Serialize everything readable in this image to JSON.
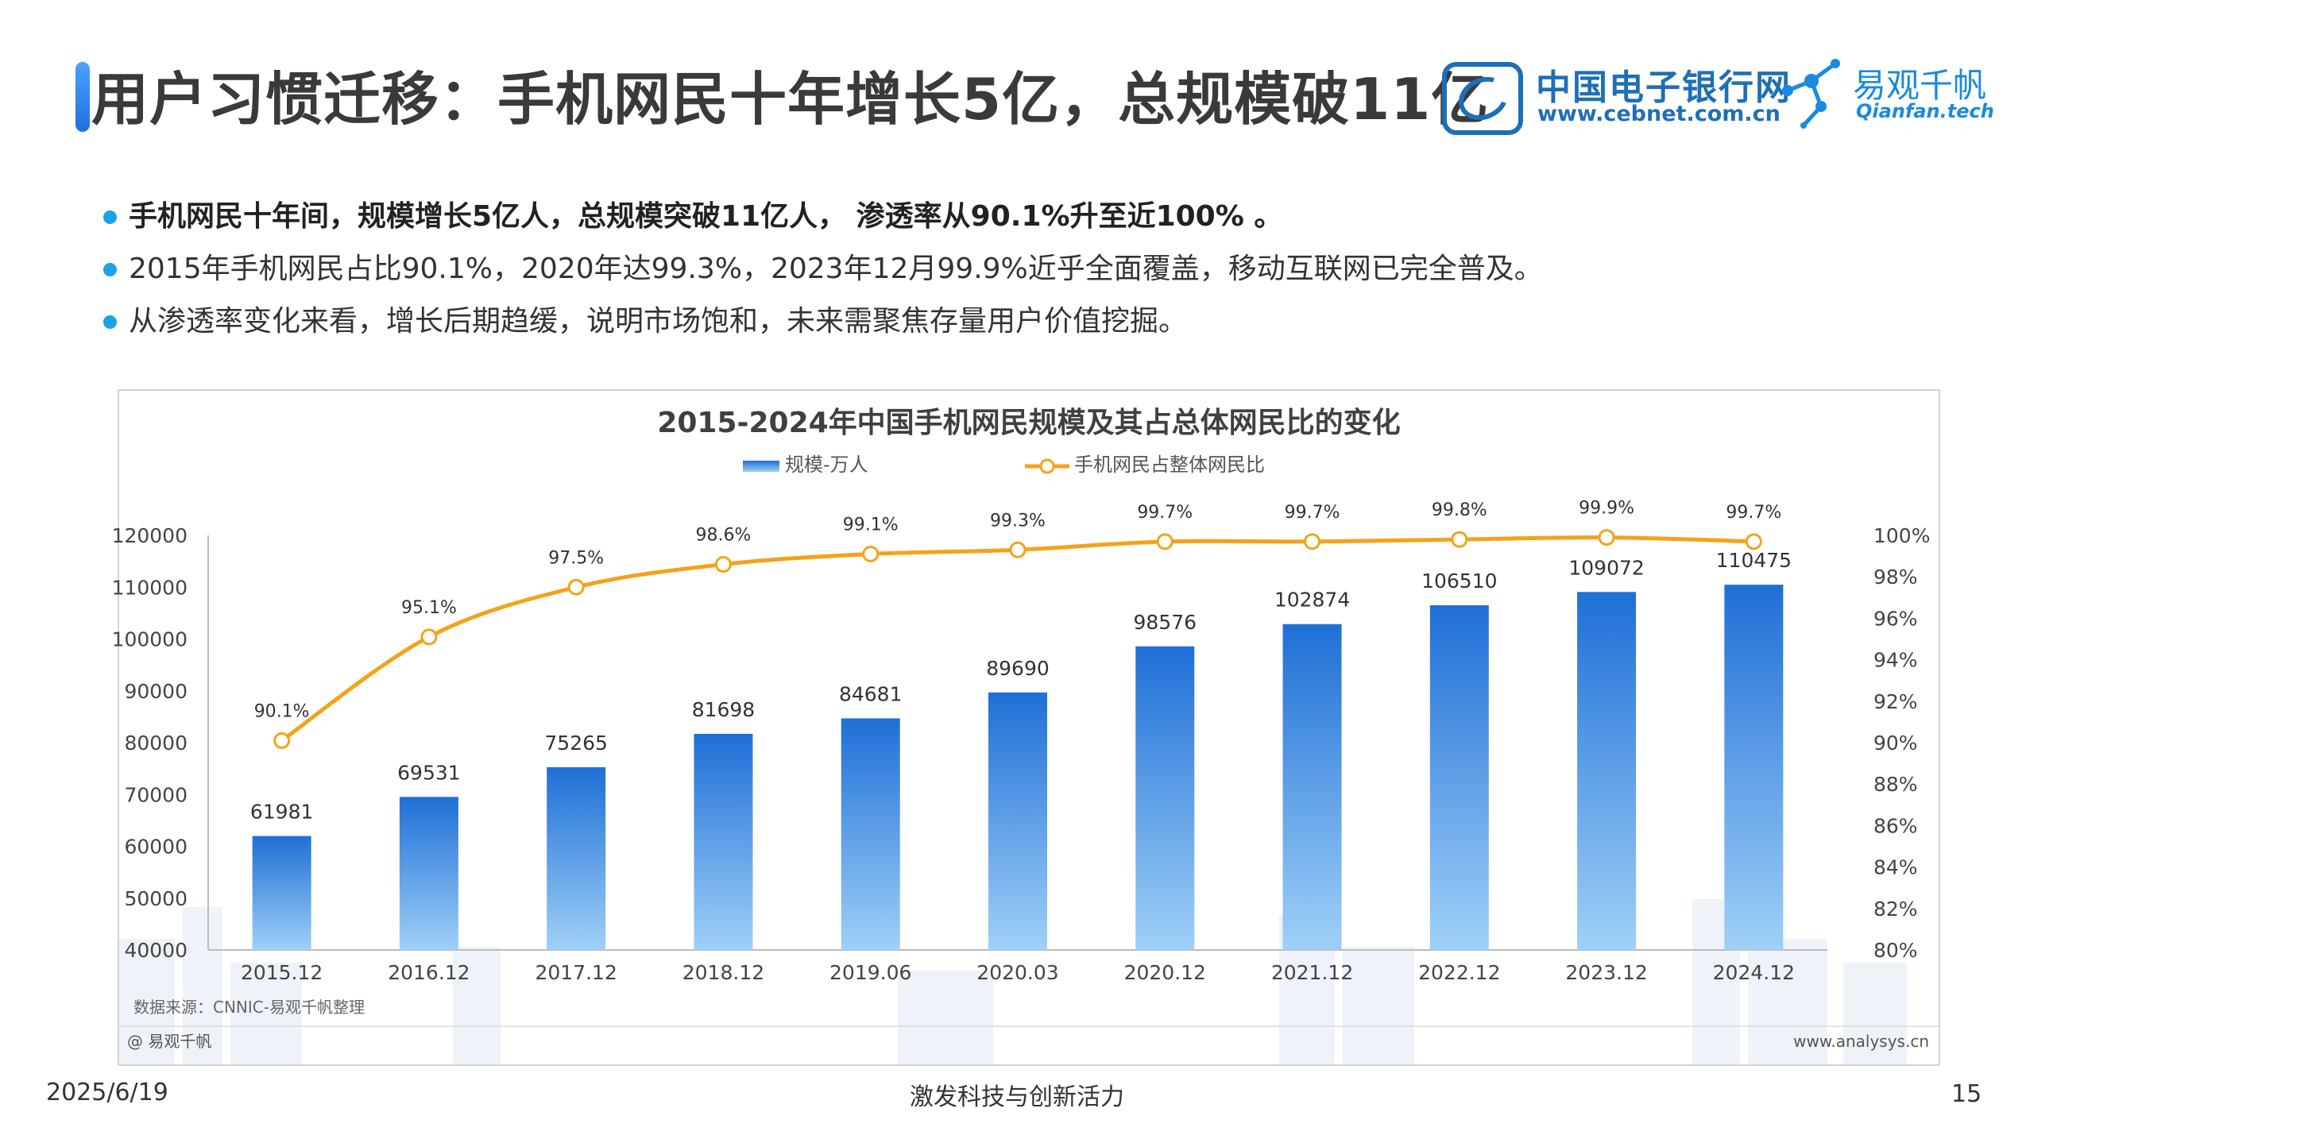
{
  "header": {
    "title": "用户习惯迁移：手机网民十年增长5亿，总规模破11亿",
    "logo1_name": "中国电子银行网",
    "logo1_url": "www.cebnet.com.cn",
    "logo2_name": "易观千帆",
    "logo2_url": "Qianfan.tech"
  },
  "bullets": [
    "手机网民十年间，规模增长5亿人，总规模突破11亿人， 渗透率从90.1%升至近100% 。",
    "2015年手机网民占比90.1%，2020年达99.3%，2023年12月99.9%近乎全面覆盖，移动互联网已完全普及。",
    "从渗透率变化来看，增长后期趋缓，说明市场饱和，未来需聚焦存量用户价值挖掘。"
  ],
  "chart_data": {
    "type": "bar",
    "title": "2015-2024年中国手机网民规模及其占总体网民比的变化",
    "categories": [
      "2015.12",
      "2016.12",
      "2017.12",
      "2018.12",
      "2019.06",
      "2020.03",
      "2020.12",
      "2021.12",
      "2022.12",
      "2023.12",
      "2024.12"
    ],
    "series": [
      {
        "name": "规模-万人",
        "type": "bar",
        "axis": "left",
        "values": [
          61981,
          69531,
          75265,
          81698,
          84681,
          89690,
          98576,
          102874,
          106510,
          109072,
          110475
        ],
        "labels": [
          "61981",
          "69531",
          "75265",
          "81698",
          "84681",
          "89690",
          "98576",
          "102874",
          "106510",
          "109072",
          "110475"
        ]
      },
      {
        "name": "手机网民占整体网民比",
        "type": "line",
        "axis": "right",
        "values": [
          90.1,
          95.1,
          97.5,
          98.6,
          99.1,
          99.3,
          99.7,
          99.7,
          99.8,
          99.9,
          99.7
        ],
        "labels": [
          "90.1%",
          "95.1%",
          "97.5%",
          "98.6%",
          "99.1%",
          "99.3%",
          "99.7%",
          "99.7%",
          "99.8%",
          "99.9%",
          "99.7%"
        ]
      }
    ],
    "y_left": {
      "ylim": [
        40000,
        120000
      ],
      "ticks": [
        120000,
        110000,
        100000,
        90000,
        80000,
        70000,
        60000,
        50000,
        40000
      ],
      "tick_labels": [
        "120000",
        "110000",
        "100000",
        "90000",
        "80000",
        "70000",
        "60000",
        "50000",
        "40000"
      ]
    },
    "y_right": {
      "ylim": [
        80,
        100
      ],
      "ticks": [
        100,
        98,
        96,
        94,
        92,
        90,
        88,
        86,
        84,
        82,
        80
      ],
      "tick_labels": [
        "100%",
        "98%",
        "96%",
        "94%",
        "92%",
        "90%",
        "88%",
        "86%",
        "84%",
        "82%",
        "80%"
      ]
    },
    "legend_placement": "top-center",
    "grid": false,
    "bar_color": "#1f78d8",
    "line_color": "#f5a21b",
    "source": "数据来源：CNNIC-易观千帆整理",
    "watermark": "@ 易观千帆",
    "site": "www.analysys.cn"
  },
  "footer": {
    "date": "2025/6/19",
    "slogan": "激发科技与创新活力",
    "page": "15"
  }
}
